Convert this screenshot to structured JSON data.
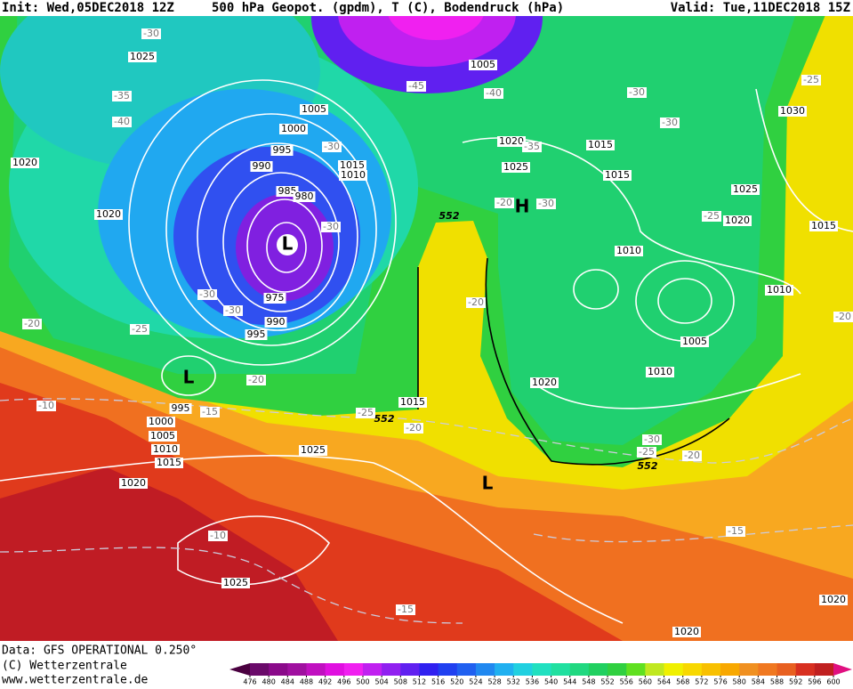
{
  "header": {
    "init": "Init: Wed,05DEC2018 12Z",
    "title": "500 hPa Geopot. (gpdm), T (C), Bodendruck (hPa)",
    "valid": "Valid: Tue,11DEC2018 15Z"
  },
  "map": {
    "labels": [
      "1025",
      "-30",
      "-35",
      "-40",
      "1020",
      "1020",
      "1005",
      "1000",
      "995",
      "990",
      "985",
      "980",
      "-30",
      "1015",
      "1010",
      "-30",
      "L",
      "975",
      "-30",
      "-30",
      "990",
      "995",
      "-25",
      "-20",
      "L",
      "-20",
      "-10",
      "995",
      "-15",
      "1000",
      "1005",
      "1010",
      "1015",
      "1020",
      "1025",
      "-10",
      "1025",
      "-15",
      "1005",
      "-45",
      "-40",
      "1020",
      "-35",
      "1025",
      "552",
      "-20",
      "H",
      "-30",
      "-20",
      "1015",
      "1015",
      "-30",
      "-30",
      "1010",
      "1005",
      "1010",
      "1020",
      "1015",
      "-25",
      "552",
      "-20",
      "L",
      "-30",
      "-25",
      "552",
      "-20",
      "-15",
      "1020",
      "1020",
      "1030",
      "-25",
      "1025",
      "-25",
      "1020",
      "1015",
      "1010",
      "-20"
    ]
  },
  "footer": {
    "data": "Data: GFS OPERATIONAL 0.250°",
    "copyright": "(C) Wetterzentrale",
    "url": "www.wetterzentrale.de"
  },
  "colorbar": {
    "ticks": [
      476,
      480,
      484,
      488,
      492,
      496,
      500,
      504,
      508,
      512,
      516,
      520,
      524,
      528,
      532,
      536,
      540,
      544,
      548,
      552,
      556,
      560,
      564,
      568,
      572,
      576,
      580,
      584,
      588,
      592,
      596,
      600
    ],
    "colors": [
      "#4a0040",
      "#6a0a6a",
      "#8a0a8a",
      "#a010a0",
      "#c010c0",
      "#e010e0",
      "#f020f0",
      "#c020f0",
      "#9020f0",
      "#6020f0",
      "#3020f0",
      "#2040f0",
      "#2060f0",
      "#2088f0",
      "#20b0f0",
      "#20d0e0",
      "#20e0c0",
      "#20e0a0",
      "#20d880",
      "#20d060",
      "#30d040",
      "#60e020",
      "#c0e820",
      "#f0f000",
      "#f8d800",
      "#f8c000",
      "#f8a800",
      "#f09020",
      "#f07820",
      "#e86020",
      "#d83020",
      "#c02020",
      "#a01020",
      "#e01080"
    ]
  }
}
